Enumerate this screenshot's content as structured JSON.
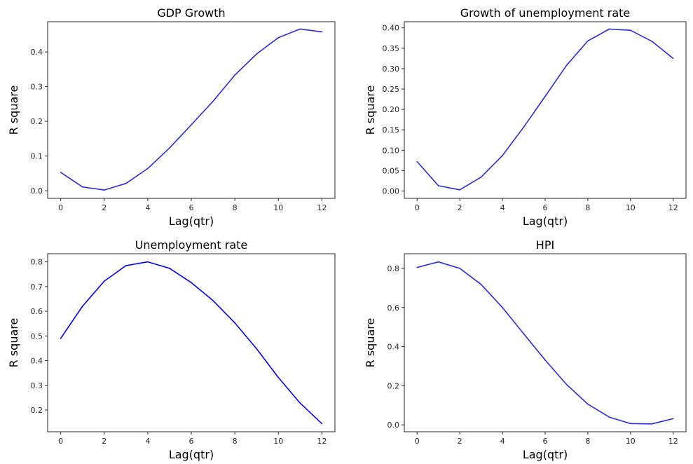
{
  "figure": {
    "line_color": "#2a2ae6",
    "axis_color": "#262626"
  },
  "chart_data": [
    {
      "type": "line",
      "title": "GDP Growth",
      "xlabel": "Lag(qtr)",
      "ylabel": "R square",
      "x": [
        0,
        1,
        2,
        3,
        4,
        5,
        6,
        7,
        8,
        9,
        10,
        11,
        12
      ],
      "xticks": [
        "0",
        "2",
        "4",
        "6",
        "8",
        "10",
        "12"
      ],
      "yticks": [
        "0.0",
        "0.1",
        "0.2",
        "0.3",
        "0.4"
      ],
      "xlim": [
        -0.6,
        12.6
      ],
      "ylim": [
        -0.022,
        0.487
      ],
      "series": [
        {
          "color": "#2a2ae6",
          "values": [
            0.053,
            0.011,
            0.002,
            0.021,
            0.064,
            0.123,
            0.19,
            0.258,
            0.333,
            0.394,
            0.441,
            0.466,
            0.458
          ]
        }
      ]
    },
    {
      "type": "line",
      "title": "Growth of unemployment rate",
      "xlabel": "Lag(qtr)",
      "ylabel": "R square",
      "x": [
        0,
        1,
        2,
        3,
        4,
        5,
        6,
        7,
        8,
        9,
        10,
        11,
        12
      ],
      "xticks": [
        "0",
        "2",
        "4",
        "6",
        "8",
        "10",
        "12"
      ],
      "yticks": [
        "0.00",
        "0.05",
        "0.10",
        "0.15",
        "0.20",
        "0.25",
        "0.30",
        "0.35",
        "0.40"
      ],
      "xlim": [
        -0.6,
        12.6
      ],
      "ylim": [
        -0.018,
        0.415
      ],
      "series": [
        {
          "color": "#2a2ae6",
          "values": [
            0.072,
            0.013,
            0.003,
            0.034,
            0.087,
            0.157,
            0.232,
            0.308,
            0.368,
            0.397,
            0.394,
            0.367,
            0.325
          ]
        }
      ]
    },
    {
      "type": "line",
      "title": "Unemployment rate",
      "xlabel": "Lag(qtr)",
      "ylabel": "R square",
      "x": [
        0,
        1,
        2,
        3,
        4,
        5,
        6,
        7,
        8,
        9,
        10,
        11,
        12
      ],
      "xticks": [
        "0",
        "2",
        "4",
        "6",
        "8",
        "10",
        "12"
      ],
      "yticks": [
        "0.2",
        "0.3",
        "0.4",
        "0.5",
        "0.6",
        "0.7",
        "0.8"
      ],
      "xlim": [
        -0.6,
        12.6
      ],
      "ylim": [
        0.112,
        0.833
      ],
      "series": [
        {
          "color": "#0000ff",
          "values": [
            0.49,
            0.62,
            0.722,
            0.785,
            0.8,
            0.774,
            0.716,
            0.643,
            0.553,
            0.448,
            0.332,
            0.228,
            0.145
          ]
        }
      ]
    },
    {
      "type": "line",
      "title": "HPI",
      "xlabel": "Lag(qtr)",
      "ylabel": "R square",
      "x": [
        0,
        1,
        2,
        3,
        4,
        5,
        6,
        7,
        8,
        9,
        10,
        11,
        12
      ],
      "xticks": [
        "0",
        "2",
        "4",
        "6",
        "8",
        "10",
        "12"
      ],
      "yticks": [
        "0.0",
        "0.2",
        "0.4",
        "0.6",
        "0.8"
      ],
      "xlim": [
        -0.6,
        12.6
      ],
      "ylim": [
        -0.035,
        0.875
      ],
      "series": [
        {
          "color": "#2a2ae6",
          "values": [
            0.805,
            0.833,
            0.8,
            0.718,
            0.6,
            0.465,
            0.332,
            0.207,
            0.106,
            0.04,
            0.007,
            0.005,
            0.032
          ]
        }
      ]
    }
  ]
}
